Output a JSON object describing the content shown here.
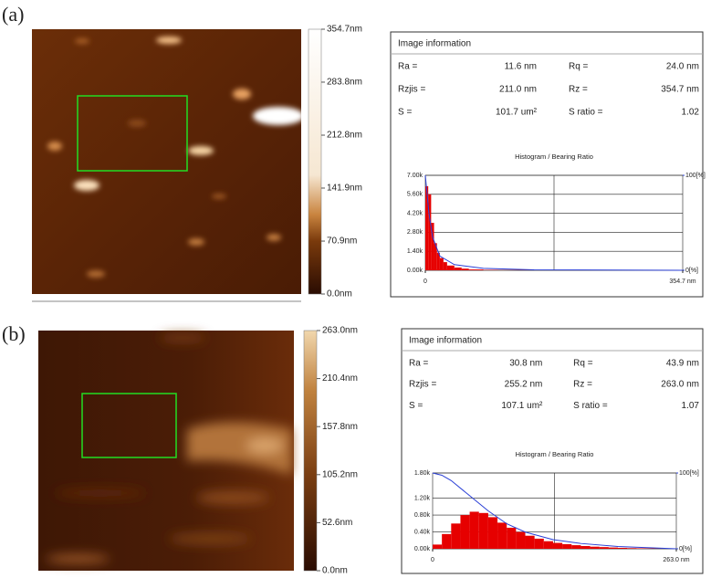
{
  "panels": [
    {
      "label": "(a)",
      "scale": {
        "ticks": [
          {
            "value": 354.7,
            "label": "354.7nm"
          },
          {
            "value": 283.8,
            "label": "283.8nm"
          },
          {
            "value": 212.8,
            "label": "212.8nm"
          },
          {
            "value": 141.9,
            "label": "141.9nm"
          },
          {
            "value": 70.9,
            "label": "70.9nm"
          },
          {
            "value": 0,
            "label": "0.0nm"
          }
        ],
        "lim": [
          0,
          354.7
        ]
      },
      "info": {
        "title": "Image information",
        "rows": [
          [
            "Ra =",
            "11.6 nm",
            "Rq =",
            "24.0 nm"
          ],
          [
            "Rzjis =",
            "211.0 nm",
            "Rz =",
            "354.7 nm"
          ],
          [
            "S =",
            "101.7 um²",
            "S ratio =",
            "1.02"
          ]
        ]
      },
      "histogram": {
        "type": "histogram",
        "title": "Histogram / Bearing Ratio",
        "xlim": [
          0,
          354.7
        ],
        "xticks": [
          0,
          {
            "value": 354.7,
            "label": "354.7 nm"
          }
        ],
        "ylim": [
          0,
          7000
        ],
        "yticks": [
          {
            "value": 0,
            "label": "0.00k"
          },
          {
            "value": 1400,
            "label": "1.40k"
          },
          {
            "value": 2800,
            "label": "2.80k"
          },
          {
            "value": 4200,
            "label": "4.20k"
          },
          {
            "value": 5600,
            "label": "5.60k"
          },
          {
            "value": 7000,
            "label": "7.00k"
          }
        ],
        "y2lim": [
          0,
          100
        ],
        "y2ticks": [
          {
            "value": 0,
            "label": "0[%]"
          },
          {
            "value": 100,
            "label": "100[%]"
          }
        ],
        "bins": [
          0,
          4,
          8,
          12,
          16,
          20,
          25,
          30,
          40,
          50,
          60,
          80,
          100,
          150,
          200,
          250,
          300,
          354.7
        ],
        "counts": [
          6200,
          5600,
          3500,
          2000,
          1300,
          900,
          600,
          350,
          200,
          120,
          60,
          30,
          15,
          8,
          5,
          3,
          2
        ],
        "color": "#e60000",
        "bearing": {
          "color": "#2a3fd6",
          "axis": "y2",
          "x": [
            0,
            5,
            10,
            20,
            40,
            80,
            150,
            354.7
          ],
          "values": [
            100,
            60,
            35,
            15,
            6,
            2,
            0.5,
            0
          ]
        }
      }
    },
    {
      "label": "(b)",
      "scale": {
        "ticks": [
          {
            "value": 263,
            "label": "263.0nm"
          },
          {
            "value": 210.4,
            "label": "210.4nm"
          },
          {
            "value": 157.8,
            "label": "157.8nm"
          },
          {
            "value": 105.2,
            "label": "105.2nm"
          },
          {
            "value": 52.6,
            "label": "52.6nm"
          },
          {
            "value": 0,
            "label": "0.0nm"
          }
        ],
        "lim": [
          0,
          263
        ]
      },
      "info": {
        "title": "Image information",
        "rows": [
          [
            "Ra =",
            "30.8 nm",
            "Rq =",
            "43.9 nm"
          ],
          [
            "Rzjis =",
            "255.2 nm",
            "Rz =",
            "263.0 nm"
          ],
          [
            "S =",
            "107.1 um²",
            "S ratio =",
            "1.07"
          ]
        ]
      },
      "histogram": {
        "type": "histogram",
        "title": "Histogram / Bearing Ratio",
        "xlim": [
          0,
          263
        ],
        "xticks": [
          0,
          {
            "value": 263,
            "label": "263.0 nm"
          }
        ],
        "ylim": [
          0,
          1800
        ],
        "yticks": [
          {
            "value": 0,
            "label": "0.00k"
          },
          {
            "value": 400,
            "label": "0.40k"
          },
          {
            "value": 800,
            "label": "0.80k"
          },
          {
            "value": 1200,
            "label": "1.20k"
          },
          {
            "value": 1800,
            "label": "1.80k"
          }
        ],
        "y2lim": [
          0,
          100
        ],
        "y2ticks": [
          {
            "value": 0,
            "label": "0[%]"
          },
          {
            "value": 100,
            "label": "100[%]"
          }
        ],
        "bins": [
          0,
          10,
          20,
          30,
          40,
          50,
          60,
          70,
          80,
          90,
          100,
          110,
          120,
          130,
          140,
          150,
          160,
          170,
          180,
          190,
          200,
          210,
          220,
          230,
          240,
          250,
          260,
          263
        ],
        "counts": [
          100,
          350,
          600,
          800,
          880,
          850,
          750,
          620,
          500,
          400,
          310,
          240,
          180,
          140,
          110,
          85,
          65,
          50,
          40,
          30,
          22,
          16,
          12,
          8,
          5,
          3,
          2
        ],
        "color": "#e60000",
        "bearing": {
          "color": "#2a3fd6",
          "axis": "y2",
          "x": [
            0,
            10,
            20,
            40,
            60,
            80,
            100,
            130,
            160,
            200,
            263
          ],
          "values": [
            100,
            97,
            90,
            70,
            50,
            33,
            22,
            12,
            7,
            3,
            0
          ]
        }
      }
    }
  ]
}
